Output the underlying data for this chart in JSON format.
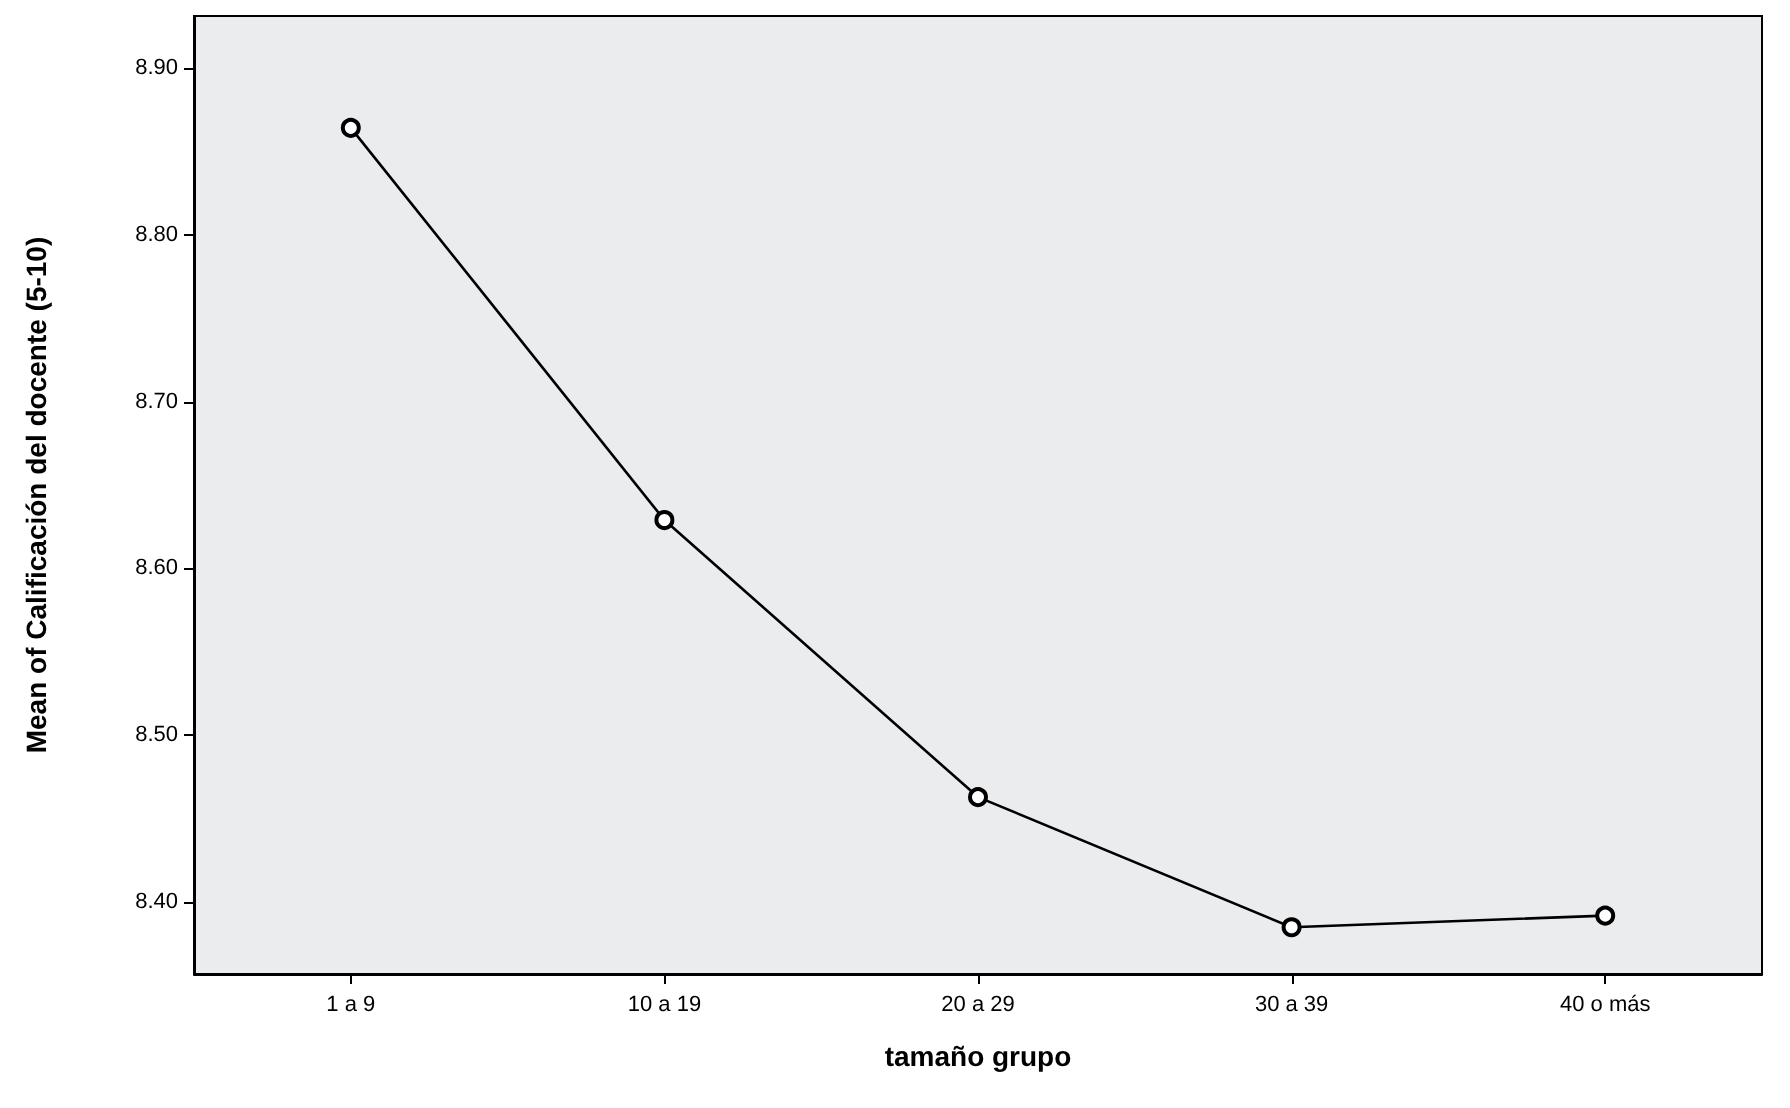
{
  "chart_data": {
    "type": "line",
    "xlabel": "tamaño grupo",
    "ylabel": "Mean of Calificación del docente (5-10)",
    "categories": [
      "1 a 9",
      "10 a 19",
      "20 a 29",
      "30 a 39",
      "40 o más"
    ],
    "series": [
      {
        "color": "#000000",
        "values": [
          8.864,
          8.629,
          8.463,
          8.385,
          8.392
        ]
      }
    ],
    "ylim": [
      8.357,
      8.931
    ],
    "yticks": [
      {
        "value": 8.4,
        "label": "8.40"
      },
      {
        "value": 8.5,
        "label": "8.50"
      },
      {
        "value": 8.6,
        "label": "8.60"
      },
      {
        "value": 8.7,
        "label": "8.70"
      },
      {
        "value": 8.8,
        "label": "8.80"
      },
      {
        "value": 8.9,
        "label": "8.90"
      }
    ],
    "grid": false,
    "marker": "circle",
    "line_style": "solid"
  }
}
